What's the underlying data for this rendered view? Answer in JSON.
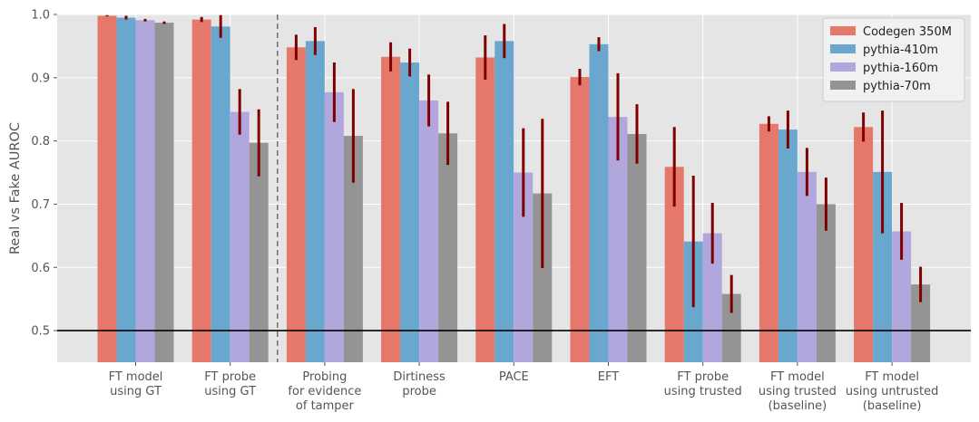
{
  "chart_data": {
    "type": "bar",
    "ylabel": "Real vs Fake AUROC",
    "xlabel": "",
    "ylim": [
      0.45,
      1.0
    ],
    "yticks": [
      "0.5",
      "0.6",
      "0.7",
      "0.8",
      "0.9",
      "1.0"
    ],
    "grid": true,
    "legend_position": "top-right",
    "reference_line": 0.5,
    "divider_after_category": 2,
    "categories": [
      [
        "FT model",
        "using GT"
      ],
      [
        "FT probe",
        "using GT"
      ],
      [
        "Probing",
        "for evidence",
        "of tamper"
      ],
      [
        "Dirtiness",
        "probe"
      ],
      [
        "PACE"
      ],
      [
        "EFT"
      ],
      [
        "FT probe",
        "using trusted"
      ],
      [
        "FT model",
        "using trusted",
        "(baseline)"
      ],
      [
        "FT model",
        "using untrusted",
        "(baseline)"
      ]
    ],
    "series": [
      {
        "name": "Codegen 350M",
        "color": "#e5786a",
        "values": [
          0.998,
          0.992,
          0.948,
          0.933,
          0.932,
          0.901,
          0.759,
          0.827,
          0.822
        ],
        "errors": [
          0.001,
          0.004,
          0.02,
          0.023,
          0.035,
          0.013,
          0.063,
          0.012,
          0.023
        ]
      },
      {
        "name": "pythia-410m",
        "color": "#6aa7cf",
        "values": [
          0.995,
          0.981,
          0.958,
          0.924,
          0.958,
          0.953,
          0.641,
          0.818,
          0.751
        ],
        "errors": [
          0.003,
          0.018,
          0.022,
          0.022,
          0.027,
          0.011,
          0.104,
          0.03,
          0.097
        ]
      },
      {
        "name": "pythia-160m",
        "color": "#b2a7dc",
        "values": [
          0.991,
          0.846,
          0.877,
          0.864,
          0.75,
          0.838,
          0.654,
          0.751,
          0.657
        ],
        "errors": [
          0.002,
          0.036,
          0.047,
          0.041,
          0.07,
          0.069,
          0.048,
          0.038,
          0.045
        ]
      },
      {
        "name": "pythia-70m",
        "color": "#949494",
        "values": [
          0.987,
          0.797,
          0.808,
          0.812,
          0.717,
          0.811,
          0.558,
          0.7,
          0.573
        ],
        "errors": [
          0.002,
          0.053,
          0.074,
          0.05,
          0.118,
          0.047,
          0.03,
          0.042,
          0.028
        ]
      }
    ]
  }
}
